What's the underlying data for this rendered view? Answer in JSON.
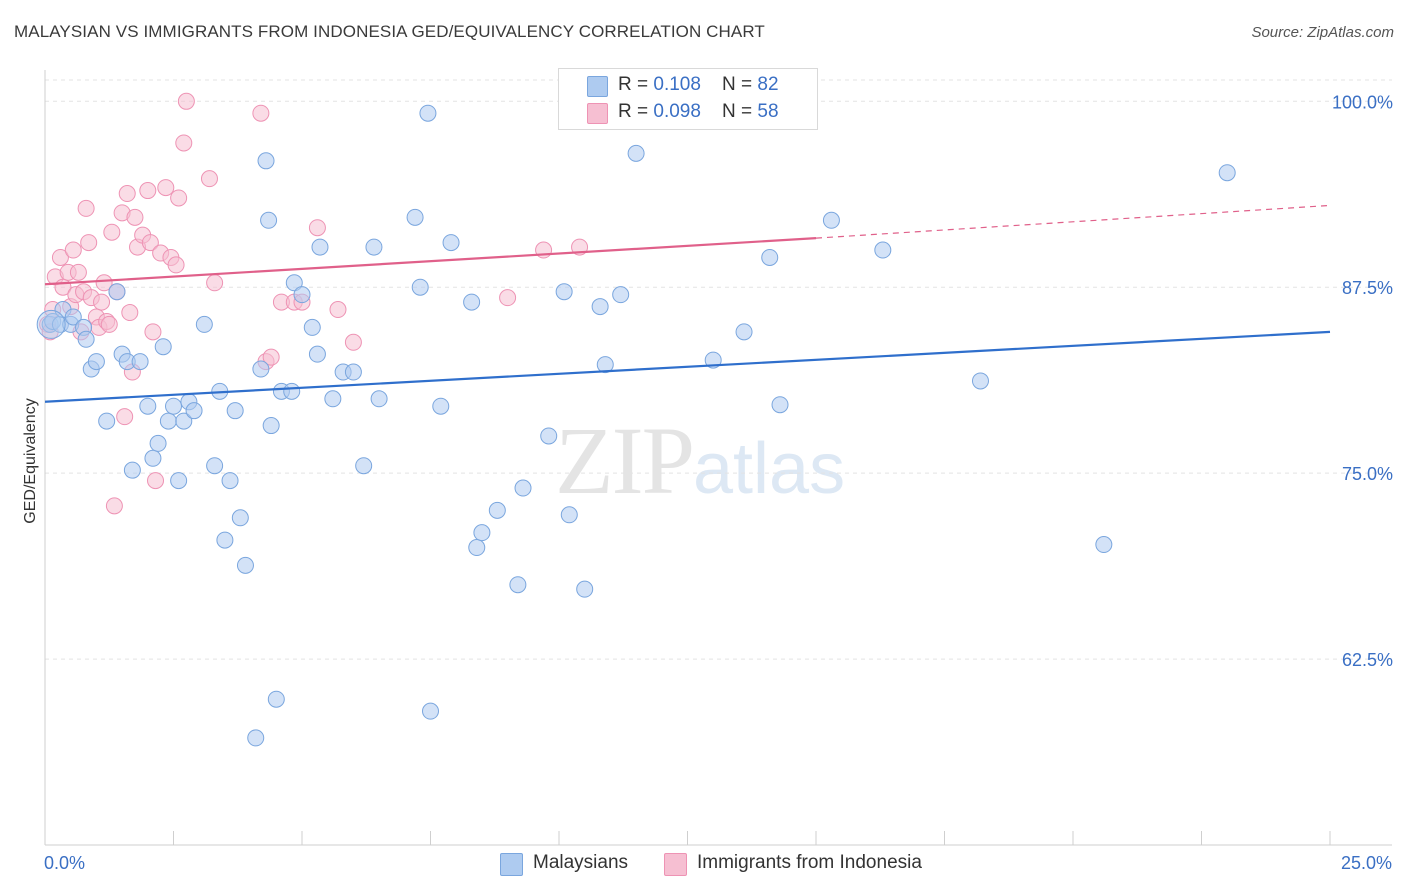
{
  "title": "MALAYSIAN VS IMMIGRANTS FROM INDONESIA GED/EQUIVALENCY CORRELATION CHART",
  "source": "Source: ZipAtlas.com",
  "watermark": {
    "zip": "ZIP",
    "atlas": "atlas"
  },
  "legend": {
    "rows": [
      {
        "r_label": "R = ",
        "r_value": "0.108",
        "n_label": "N = ",
        "n_value": "82"
      },
      {
        "r_label": "R = ",
        "r_value": "0.098",
        "n_label": "N = ",
        "n_value": "58"
      }
    ]
  },
  "colors": {
    "blue_fill": "#aecbf0",
    "blue_stroke": "#7aa6de",
    "blue_line": "#2f6fcc",
    "pink_fill": "#f6bfd2",
    "pink_stroke": "#ee93b4",
    "pink_line": "#e0608a",
    "axis_label": "#3a6fc4",
    "grid": "#e3e3e3"
  },
  "chart_data": {
    "type": "scatter",
    "title": "MALAYSIAN VS IMMIGRANTS FROM INDONESIA GED/EQUIVALENCY CORRELATION CHART",
    "xlabel": "",
    "ylabel": "GED/Equivalency",
    "xlim": [
      0,
      25
    ],
    "ylim": [
      50,
      101.5
    ],
    "x_tick_labels": [
      "0.0%",
      "25.0%"
    ],
    "y_ticks": [
      62.5,
      75.0,
      87.5,
      100.0
    ],
    "y_tick_labels": [
      "62.5%",
      "75.0%",
      "87.5%",
      "100.0%"
    ],
    "grid": true,
    "series": [
      {
        "name": "Malaysians",
        "color": "blue",
        "R": 0.108,
        "N": 82,
        "trend": {
          "x0": 0,
          "y0": 79.8,
          "x1": 25,
          "y1": 84.5
        },
        "points": [
          [
            0.1,
            85.0
          ],
          [
            0.15,
            85.2
          ],
          [
            0.3,
            85.0
          ],
          [
            0.35,
            86.0
          ],
          [
            0.5,
            85.0
          ],
          [
            0.55,
            85.5
          ],
          [
            0.75,
            84.8
          ],
          [
            0.8,
            84.0
          ],
          [
            0.9,
            82.0
          ],
          [
            1.0,
            82.5
          ],
          [
            1.2,
            78.5
          ],
          [
            1.4,
            87.2
          ],
          [
            1.5,
            83.0
          ],
          [
            1.6,
            82.5
          ],
          [
            1.7,
            75.2
          ],
          [
            1.85,
            82.5
          ],
          [
            2.0,
            79.5
          ],
          [
            2.1,
            76.0
          ],
          [
            2.2,
            77.0
          ],
          [
            2.3,
            83.5
          ],
          [
            2.4,
            78.5
          ],
          [
            2.5,
            79.5
          ],
          [
            2.6,
            74.5
          ],
          [
            2.7,
            78.5
          ],
          [
            2.8,
            79.8
          ],
          [
            2.9,
            79.2
          ],
          [
            3.1,
            85.0
          ],
          [
            3.3,
            75.5
          ],
          [
            3.4,
            80.5
          ],
          [
            3.5,
            70.5
          ],
          [
            3.6,
            74.5
          ],
          [
            3.7,
            79.2
          ],
          [
            3.8,
            72.0
          ],
          [
            3.9,
            68.8
          ],
          [
            4.1,
            57.2
          ],
          [
            4.2,
            82.0
          ],
          [
            4.3,
            96.0
          ],
          [
            4.35,
            92.0
          ],
          [
            4.4,
            78.2
          ],
          [
            4.5,
            59.8
          ],
          [
            4.6,
            80.5
          ],
          [
            4.8,
            80.5
          ],
          [
            4.85,
            87.8
          ],
          [
            5.0,
            87.0
          ],
          [
            5.2,
            84.8
          ],
          [
            5.3,
            83.0
          ],
          [
            5.35,
            90.2
          ],
          [
            5.6,
            80.0
          ],
          [
            5.8,
            81.8
          ],
          [
            6.0,
            81.8
          ],
          [
            6.2,
            75.5
          ],
          [
            6.4,
            90.2
          ],
          [
            6.5,
            80.0
          ],
          [
            7.2,
            92.2
          ],
          [
            7.3,
            87.5
          ],
          [
            7.45,
            99.2
          ],
          [
            7.5,
            59.0
          ],
          [
            7.7,
            79.5
          ],
          [
            7.9,
            90.5
          ],
          [
            8.3,
            86.5
          ],
          [
            8.4,
            70.0
          ],
          [
            8.5,
            71.0
          ],
          [
            8.8,
            72.5
          ],
          [
            9.2,
            67.5
          ],
          [
            9.3,
            74.0
          ],
          [
            9.8,
            77.5
          ],
          [
            10.1,
            87.2
          ],
          [
            10.2,
            72.2
          ],
          [
            10.5,
            67.2
          ],
          [
            10.8,
            86.2
          ],
          [
            10.9,
            82.3
          ],
          [
            11.2,
            87.0
          ],
          [
            11.5,
            96.5
          ],
          [
            13.0,
            82.6
          ],
          [
            13.6,
            84.5
          ],
          [
            14.1,
            89.5
          ],
          [
            14.3,
            79.6
          ],
          [
            15.3,
            92.0
          ],
          [
            16.3,
            90.0
          ],
          [
            18.2,
            81.2
          ],
          [
            20.6,
            70.2
          ],
          [
            23.0,
            95.2
          ]
        ]
      },
      {
        "name": "Immigrants from Indonesia",
        "color": "pink",
        "R": 0.098,
        "N": 58,
        "trend": {
          "x0": 0,
          "y0": 87.7,
          "x1": 15.0,
          "y1": 90.8,
          "dash_x0": 15.0,
          "dash_y0": 90.8,
          "dash_x1": 25,
          "dash_y1": 93.0
        },
        "points": [
          [
            0.05,
            85.0
          ],
          [
            0.1,
            84.5
          ],
          [
            0.15,
            86.0
          ],
          [
            0.2,
            88.2
          ],
          [
            0.3,
            89.5
          ],
          [
            0.35,
            87.5
          ],
          [
            0.45,
            88.5
          ],
          [
            0.5,
            86.2
          ],
          [
            0.55,
            90.0
          ],
          [
            0.6,
            87.0
          ],
          [
            0.7,
            84.5
          ],
          [
            0.75,
            87.2
          ],
          [
            0.8,
            92.8
          ],
          [
            0.85,
            90.5
          ],
          [
            0.9,
            86.8
          ],
          [
            1.0,
            85.5
          ],
          [
            1.05,
            84.8
          ],
          [
            1.1,
            86.5
          ],
          [
            1.15,
            87.8
          ],
          [
            1.2,
            85.2
          ],
          [
            1.3,
            91.2
          ],
          [
            1.35,
            72.8
          ],
          [
            1.4,
            87.2
          ],
          [
            1.5,
            92.5
          ],
          [
            1.55,
            78.8
          ],
          [
            1.6,
            93.8
          ],
          [
            1.65,
            85.8
          ],
          [
            1.7,
            81.8
          ],
          [
            1.75,
            92.2
          ],
          [
            1.8,
            90.2
          ],
          [
            1.9,
            91.0
          ],
          [
            2.0,
            94.0
          ],
          [
            2.05,
            90.5
          ],
          [
            2.1,
            84.5
          ],
          [
            2.15,
            74.5
          ],
          [
            2.25,
            89.8
          ],
          [
            2.35,
            94.2
          ],
          [
            2.45,
            89.5
          ],
          [
            2.55,
            89.0
          ],
          [
            2.6,
            93.5
          ],
          [
            2.7,
            97.2
          ],
          [
            2.75,
            100.0
          ],
          [
            3.2,
            94.8
          ],
          [
            3.3,
            87.8
          ],
          [
            4.2,
            99.2
          ],
          [
            4.3,
            82.5
          ],
          [
            4.4,
            82.8
          ],
          [
            4.6,
            86.5
          ],
          [
            4.85,
            86.5
          ],
          [
            5.0,
            86.5
          ],
          [
            5.3,
            91.5
          ],
          [
            5.7,
            86.0
          ],
          [
            6.0,
            83.8
          ],
          [
            9.0,
            86.8
          ],
          [
            9.7,
            90.0
          ],
          [
            10.4,
            90.2
          ],
          [
            0.65,
            88.5
          ],
          [
            1.25,
            85.0
          ]
        ]
      }
    ]
  },
  "bottom_legend": [
    {
      "label": "Malaysians"
    },
    {
      "label": "Immigrants from Indonesia"
    }
  ]
}
